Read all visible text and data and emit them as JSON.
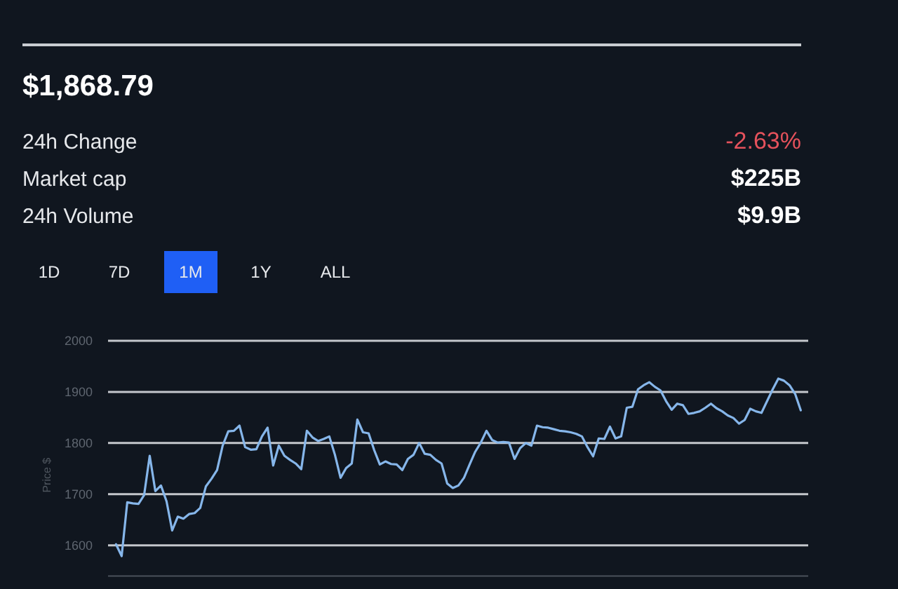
{
  "chart_data": {
    "type": "line",
    "title": "$1,868.79",
    "ylabel": "Price $",
    "annotations": [
      "24h Change",
      "-2.63%",
      "Market cap",
      "$225B",
      "24h Volume",
      "$9.9B",
      "1D",
      "7D",
      "1M",
      "1Y",
      "ALL"
    ],
    "categories": [
      null,
      null,
      null,
      null,
      null,
      null,
      null,
      null,
      null,
      null,
      null,
      null,
      null,
      null,
      null,
      null,
      null,
      null,
      null,
      null,
      null,
      null,
      null,
      null,
      null,
      null,
      null,
      null,
      null,
      null,
      null,
      null,
      null,
      null,
      null,
      null,
      null,
      null,
      null,
      null,
      null,
      null,
      null,
      null,
      null,
      null,
      null,
      null,
      null,
      null,
      null,
      null,
      null,
      null,
      null,
      null,
      null,
      null,
      null,
      null,
      null,
      null,
      null,
      null,
      null,
      null,
      null,
      null,
      null,
      null,
      null,
      null,
      null,
      null,
      null,
      null,
      null,
      null,
      null,
      null,
      null,
      null,
      null,
      null,
      null,
      null,
      null,
      null,
      null,
      null,
      null,
      null,
      null,
      null,
      null,
      null,
      null,
      null,
      null,
      null,
      null,
      null,
      null,
      null,
      null,
      null,
      null,
      null,
      null,
      null,
      null,
      null,
      null,
      null,
      null,
      null,
      null,
      null,
      null,
      null,
      null,
      null,
      null
    ],
    "series": [
      {
        "color": "#86b6ea",
        "values": [
          1602,
          1579,
          1684,
          1682,
          1681,
          1698,
          1775,
          1706,
          1717,
          1686,
          1629,
          1656,
          1652,
          1661,
          1663,
          1673,
          1715,
          1730,
          1747,
          1795,
          1823,
          1824,
          1834,
          1792,
          1787,
          1788,
          1813,
          1830,
          1756,
          1795,
          1775,
          1767,
          1760,
          1749,
          1824,
          1811,
          1804,
          1808,
          1813,
          1777,
          1732,
          1751,
          1760,
          1846,
          1821,
          1819,
          1786,
          1758,
          1764,
          1759,
          1758,
          1747,
          1769,
          1777,
          1800,
          1779,
          1777,
          1767,
          1760,
          1721,
          1712,
          1717,
          1732,
          1758,
          1783,
          1801,
          1824,
          1806,
          1801,
          1802,
          1801,
          1769,
          1790,
          1800,
          1795,
          1834,
          1831,
          1830,
          1827,
          1824,
          1823,
          1821,
          1818,
          1813,
          1792,
          1774,
          1809,
          1808,
          1832,
          1809,
          1813,
          1869,
          1871,
          1905,
          1913,
          1919,
          1910,
          1903,
          1882,
          1865,
          1877,
          1874,
          1857,
          1859,
          1862,
          1869,
          1877,
          1868,
          1862,
          1854,
          1849,
          1838,
          1845,
          1867,
          1862,
          1859,
          1882,
          1905,
          1926,
          1922,
          1913,
          1896,
          1864
        ]
      }
    ],
    "ylim": [
      1540,
      2000
    ],
    "yticks": [
      1600,
      1700,
      1800,
      1900,
      2000
    ],
    "grid": "y",
    "tick_labels": "y"
  }
}
